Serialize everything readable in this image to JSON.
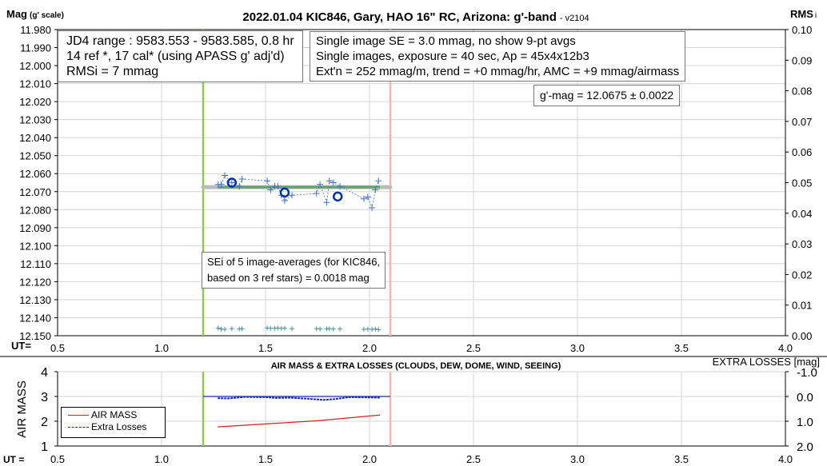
{
  "chart_data": [
    {
      "type": "scatter",
      "title": "2022.01.04 KIC846, Gary, HAO 16\" RC, Arizona: g'-band",
      "version": "- v2104",
      "ylabel": "Mag",
      "ylabel_sub": "(g' scale)",
      "y2label": "RMS",
      "y2label_sub": "i",
      "xlabel": "UT=",
      "xlim": [
        0.5,
        4.0
      ],
      "ylim": [
        11.98,
        12.15
      ],
      "y_inverted": true,
      "y2lim": [
        0.0,
        0.1
      ],
      "grid": true,
      "x_ticks": [
        "0.5",
        "1.0",
        "1.5",
        "2.0",
        "2.5",
        "3.0",
        "3.5",
        "4.0"
      ],
      "y_ticks": [
        "11.980",
        "11.990",
        "12.000",
        "12.010",
        "12.020",
        "12.030",
        "12.040",
        "12.050",
        "12.060",
        "12.070",
        "12.080",
        "12.090",
        "12.100",
        "12.110",
        "12.120",
        "12.130",
        "12.140",
        "12.150"
      ],
      "y2_ticks": [
        "0.10",
        "0.09",
        "0.08",
        "0.07",
        "0.06",
        "0.05",
        "0.04",
        "0.03",
        "0.02",
        "0.01",
        "0.00"
      ],
      "vlines": [
        {
          "x": 1.2,
          "color": "#92c84f"
        },
        {
          "x": 2.1,
          "color": "#f4b6b6"
        }
      ],
      "series": [
        {
          "kind": "single-images",
          "color": "#4472c4",
          "x": [
            1.272,
            1.287,
            1.304,
            1.338,
            1.374,
            1.387,
            1.508,
            1.524,
            1.544,
            1.559,
            1.576,
            1.592,
            1.627,
            1.745,
            1.762,
            1.794,
            1.807,
            1.826,
            1.858,
            1.973,
            1.992,
            2.012,
            2.028,
            2.043
          ],
          "y": [
            12.066,
            12.066,
            12.061,
            12.065,
            12.067,
            12.063,
            12.064,
            12.069,
            12.067,
            12.067,
            12.072,
            12.075,
            12.072,
            12.071,
            12.066,
            12.076,
            12.064,
            12.065,
            12.067,
            12.074,
            12.073,
            12.079,
            12.069,
            12.064
          ]
        },
        {
          "kind": "image-averages",
          "color": "#0033aa",
          "x": [
            1.338,
            1.592,
            1.847
          ],
          "y": [
            12.065,
            12.0705,
            12.0727
          ]
        },
        {
          "kind": "mean",
          "color": "#5fa36a",
          "x": [
            1.27,
            2.05
          ],
          "y": [
            12.0675,
            12.0675
          ]
        },
        {
          "kind": "mean-extended",
          "color": "#bbbbbb",
          "x": [
            1.2,
            2.1
          ],
          "y": [
            12.0675,
            12.0675
          ]
        },
        {
          "kind": "rms",
          "axis": "y2",
          "color": "#4d8fa0",
          "x": [
            1.272,
            1.287,
            1.304,
            1.338,
            1.374,
            1.387,
            1.508,
            1.524,
            1.544,
            1.559,
            1.576,
            1.592,
            1.627,
            1.745,
            1.762,
            1.794,
            1.807,
            1.826,
            1.858,
            1.973,
            1.992,
            2.012,
            2.028,
            2.043
          ],
          "y": [
            0.0025,
            0.0022,
            0.0021,
            0.0023,
            0.0022,
            0.0023,
            0.0025,
            0.0024,
            0.0024,
            0.0025,
            0.0024,
            0.0024,
            0.0023,
            0.0023,
            0.0022,
            0.0023,
            0.0023,
            0.0022,
            0.0022,
            0.0021,
            0.0022,
            0.0021,
            0.0022,
            0.002
          ]
        }
      ],
      "annotations": {
        "box1": [
          "JD4 range : 9583.553 - 9583.585,  0.8  hr",
          "14 ref *, 17 cal* (using APASS g' adj'd)",
          "RMSi = 7 mmag"
        ],
        "box2": [
          "Single image SE = 3.0 mmag, no show  9-pt avgs",
          "Single images, exposure = 40 sec, Ap = 45x4x12b3",
          "Ext'n = 252 mmag/m, trend = +0 mmag/hr, AMC = +9 mmag/airmass"
        ],
        "box3": "g'-mag = 12.0675 ± 0.0022",
        "box4": [
          "SEi of 5 image-averages (for KIC846,",
          "based on 3 ref stars) = 0.0018 mag"
        ]
      }
    },
    {
      "type": "line",
      "title": "AIR MASS & EXTRA LOSSES (CLOUDS, DEW, DOME, WIND, SEEING)",
      "ylabel": "AIR MASS",
      "y2label": "EXTRA LOSSES [mag]",
      "xlabel": "UT =",
      "xlim": [
        0.5,
        4.0
      ],
      "ylim": [
        1,
        4
      ],
      "y2lim": [
        -1.0,
        2.0
      ],
      "y2_inverted": true,
      "grid": true,
      "x_ticks": [
        "0.5",
        "1.0",
        "1.5",
        "2.0",
        "2.5",
        "3.0",
        "3.5",
        "4.0"
      ],
      "y_ticks": [
        "4",
        "3",
        "2",
        "1"
      ],
      "y2_ticks": [
        "-1.0",
        "0.0",
        "1.0",
        "2.0"
      ],
      "legend": {
        "placement": "left",
        "entries": [
          "AIR MASS",
          "Extra Losses"
        ]
      },
      "series": [
        {
          "name": "AIR MASS",
          "color": "#cc2222",
          "x": [
            1.27,
            1.5,
            1.75,
            2.05
          ],
          "y": [
            1.77,
            1.89,
            2.02,
            2.25
          ]
        },
        {
          "name": "Extra Losses",
          "axis": "y2",
          "color": "#1a2fa0",
          "x": [
            1.27,
            1.32,
            1.4,
            1.5,
            1.55,
            1.62,
            1.7,
            1.78,
            1.84,
            1.9,
            2.0,
            2.05
          ],
          "y": [
            0.07,
            0.08,
            0.02,
            0.03,
            0.06,
            0.05,
            0.09,
            0.14,
            0.1,
            0.03,
            0.04,
            0.05
          ]
        }
      ],
      "reference_line": {
        "axis": "y2",
        "value": 0.0,
        "x": [
          1.2,
          2.1
        ],
        "color": "#1a2fa0"
      },
      "vlines": [
        {
          "x": 1.2,
          "color": "#92c84f"
        },
        {
          "x": 2.1,
          "color": "#f4b6b6"
        }
      ]
    }
  ]
}
